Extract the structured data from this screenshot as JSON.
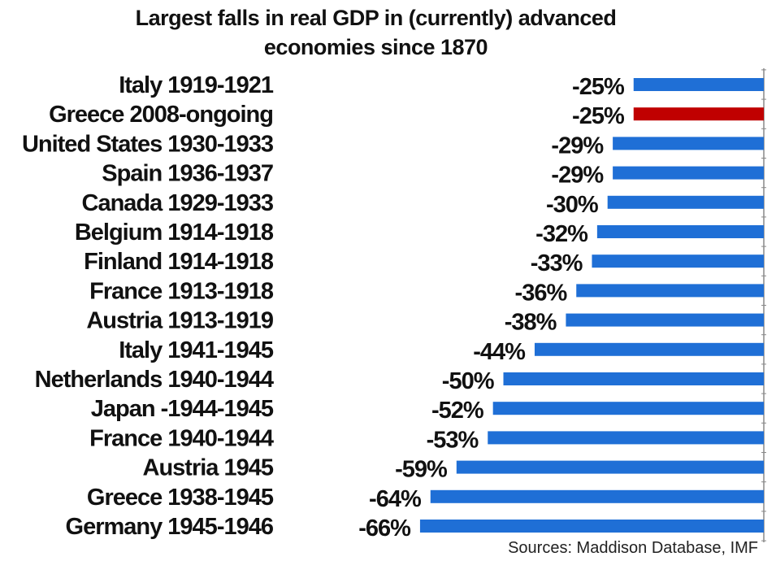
{
  "chart_data": {
    "type": "bar",
    "orientation": "horizontal",
    "title": "Largest falls in real GDP in (currently) advanced economies since 1870",
    "title_lines": [
      "Largest falls in real GDP in (currently) advanced",
      "economies since 1870"
    ],
    "xlabel": "",
    "ylabel": "",
    "xlim": [
      -66,
      0
    ],
    "grid": false,
    "categories": [
      "Italy 1919-1921",
      "Greece 2008-ongoing",
      "United States 1930-1933",
      "Spain 1936-1937",
      "Canada 1929-1933",
      "Belgium 1914-1918",
      "Finland 1914-1918",
      "France 1913-1918",
      "Austria 1913-1919",
      "Italy 1941-1945",
      "Netherlands 1940-1944",
      "Japan -1944-1945",
      "France 1940-1944",
      "Austria 1945",
      "Greece 1938-1945",
      "Germany 1945-1946"
    ],
    "values": [
      -25,
      -25,
      -29,
      -29,
      -30,
      -32,
      -33,
      -36,
      -38,
      -44,
      -50,
      -52,
      -53,
      -59,
      -64,
      -66
    ],
    "data_labels": [
      "-25%",
      "-25%",
      "-29%",
      "-29%",
      "-30%",
      "-32%",
      "-33%",
      "-36%",
      "-38%",
      "-44%",
      "-50%",
      "-52%",
      "-53%",
      "-59%",
      "-64%",
      "-66%"
    ],
    "highlight_index": 1,
    "colors": {
      "default": "#1f6fd6",
      "highlight": "#c00000",
      "axis": "#888888"
    },
    "source": "Sources: Maddison Database, IMF"
  }
}
